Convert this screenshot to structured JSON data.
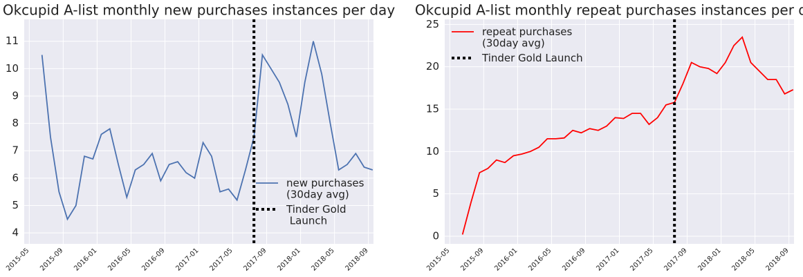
{
  "chart_data": [
    {
      "type": "line",
      "title": "Okcupid A-list monthly new purchases instances per day",
      "x": [
        "2015-06",
        "2015-07",
        "2015-08",
        "2015-09",
        "2015-10",
        "2015-11",
        "2015-12",
        "2016-01",
        "2016-02",
        "2016-03",
        "2016-04",
        "2016-05",
        "2016-06",
        "2016-07",
        "2016-08",
        "2016-09",
        "2016-10",
        "2016-11",
        "2016-12",
        "2017-01",
        "2017-02",
        "2017-03",
        "2017-04",
        "2017-05",
        "2017-06",
        "2017-07",
        "2017-08",
        "2017-09",
        "2017-10",
        "2017-11",
        "2017-12",
        "2018-01",
        "2018-02",
        "2018-03",
        "2018-04",
        "2018-05",
        "2018-06",
        "2018-07",
        "2018-08",
        "2018-09"
      ],
      "series": [
        {
          "name": "new purchases\n(30day avg)",
          "color": "#4c72b0",
          "values": [
            10.5,
            7.5,
            5.5,
            4.5,
            5.0,
            6.8,
            6.7,
            7.6,
            7.8,
            6.5,
            5.3,
            6.3,
            6.5,
            6.9,
            5.9,
            6.5,
            6.6,
            6.2,
            6.0,
            7.3,
            6.8,
            5.5,
            5.6,
            5.2,
            6.3,
            7.5,
            10.5,
            10.0,
            9.5,
            8.7,
            7.5,
            9.5,
            11.0,
            9.8,
            8.0,
            6.3,
            6.5,
            6.9,
            6.4,
            6.3
          ]
        }
      ],
      "vline": {
        "name": "Tinder Gold\n Launch",
        "x": "2017-07",
        "color": "#000000"
      },
      "xlim": [
        "2015-05",
        "2018-09"
      ],
      "xticks": [
        "2015-05",
        "2015-09",
        "2016-01",
        "2016-05",
        "2016-09",
        "2017-01",
        "2017-05",
        "2017-09",
        "2018-01",
        "2018-05",
        "2018-09"
      ],
      "ylim": [
        3.6,
        11.8
      ],
      "yticks": [
        4,
        5,
        6,
        7,
        8,
        9,
        10,
        11
      ],
      "grid": true,
      "legend": "lower right"
    },
    {
      "type": "line",
      "title": "Okcupid A-list monthly repeat purchases instances per day",
      "x": [
        "2015-06",
        "2015-07",
        "2015-08",
        "2015-09",
        "2015-10",
        "2015-11",
        "2015-12",
        "2016-01",
        "2016-02",
        "2016-03",
        "2016-04",
        "2016-05",
        "2016-06",
        "2016-07",
        "2016-08",
        "2016-09",
        "2016-10",
        "2016-11",
        "2016-12",
        "2017-01",
        "2017-02",
        "2017-03",
        "2017-04",
        "2017-05",
        "2017-06",
        "2017-07",
        "2017-08",
        "2017-09",
        "2017-10",
        "2017-11",
        "2017-12",
        "2018-01",
        "2018-02",
        "2018-03",
        "2018-04",
        "2018-05",
        "2018-06",
        "2018-07",
        "2018-08",
        "2018-09"
      ],
      "series": [
        {
          "name": "repeat purchases\n(30day avg)",
          "color": "#ff0000",
          "values": [
            0.2,
            4,
            7.5,
            8,
            9,
            8.7,
            9.5,
            9.7,
            10,
            10.5,
            11.5,
            11.5,
            11.6,
            12.5,
            12.2,
            12.7,
            12.5,
            13,
            14,
            13.9,
            14.5,
            14.5,
            13.2,
            14,
            15.5,
            15.8,
            18,
            20.5,
            20,
            19.8,
            19.2,
            20.5,
            22.5,
            23.5,
            20.5,
            19.5,
            18.5,
            18.5,
            16.8,
            17.3
          ]
        }
      ],
      "vline": {
        "name": "Tinder Gold Launch",
        "x": "2017-07",
        "color": "#000000"
      },
      "xlim": [
        "2015-05",
        "2018-09"
      ],
      "xticks": [
        "2015-05",
        "2015-09",
        "2016-01",
        "2016-05",
        "2016-09",
        "2017-01",
        "2017-05",
        "2017-09",
        "2018-01",
        "2018-05",
        "2018-09"
      ],
      "ylim": [
        -0.9,
        25.6
      ],
      "yticks": [
        0,
        5,
        10,
        15,
        20,
        25
      ],
      "grid": true,
      "legend": "upper left"
    }
  ]
}
